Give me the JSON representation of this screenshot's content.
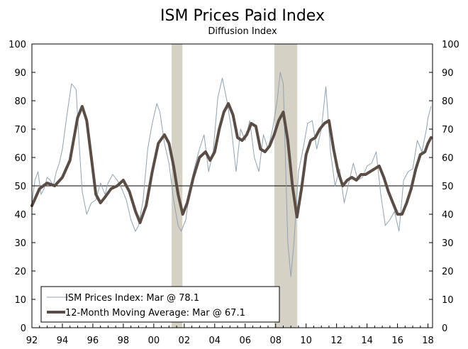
{
  "chart_data": {
    "type": "line",
    "title": "ISM Prices Paid Index",
    "subtitle": "Diffusion Index",
    "xlabel": "",
    "ylabel": "",
    "xlim": [
      1992.0,
      2018.3
    ],
    "ylim": [
      0,
      100
    ],
    "x_ticks": [
      1992,
      1994,
      1996,
      1998,
      2000,
      2002,
      2004,
      2006,
      2008,
      2010,
      2012,
      2014,
      2016,
      2018
    ],
    "x_tick_labels": [
      "92",
      "94",
      "96",
      "98",
      "00",
      "02",
      "04",
      "06",
      "08",
      "10",
      "12",
      "14",
      "16",
      "18"
    ],
    "y_ticks": [
      0,
      10,
      20,
      30,
      40,
      50,
      60,
      70,
      80,
      90,
      100
    ],
    "reference_line": 50,
    "recessions": [
      [
        2001.17,
        2001.88
      ],
      [
        2007.92,
        2009.42
      ]
    ],
    "colors": {
      "index": "#8fa3b3",
      "moving_average": "#5a4d45",
      "recession": "#d5d1c5",
      "reference": "#000000"
    },
    "legend": {
      "position": "bottom-left",
      "entries": [
        "ISM Prices Index: Mar @ 78.1",
        "12-Month Moving Average: Mar @ 67.1"
      ]
    },
    "series": [
      {
        "name": "ISM Prices Index",
        "x": [
          1992.0,
          1992.2,
          1992.4,
          1992.6,
          1992.8,
          1993.0,
          1993.2,
          1993.4,
          1993.6,
          1993.8,
          1994.0,
          1994.3,
          1994.6,
          1994.9,
          1995.1,
          1995.3,
          1995.6,
          1995.9,
          1996.2,
          1996.5,
          1996.8,
          1997.0,
          1997.3,
          1997.6,
          1997.9,
          1998.2,
          1998.5,
          1998.8,
          1999.0,
          1999.3,
          1999.6,
          1999.9,
          2000.2,
          2000.4,
          2000.7,
          2001.0,
          2001.3,
          2001.6,
          2001.8,
          2002.1,
          2002.4,
          2002.7,
          2003.0,
          2003.3,
          2003.6,
          2003.9,
          2004.2,
          2004.5,
          2004.8,
          2005.1,
          2005.4,
          2005.7,
          2006.0,
          2006.3,
          2006.6,
          2006.9,
          2007.2,
          2007.5,
          2007.8,
          2008.1,
          2008.3,
          2008.5,
          2008.8,
          2009.0,
          2009.2,
          2009.5,
          2009.8,
          2010.1,
          2010.4,
          2010.7,
          2011.0,
          2011.3,
          2011.6,
          2011.9,
          2012.2,
          2012.5,
          2012.8,
          2013.1,
          2013.4,
          2013.7,
          2014.0,
          2014.3,
          2014.6,
          2014.9,
          2015.2,
          2015.5,
          2015.8,
          2016.1,
          2016.4,
          2016.7,
          2017.0,
          2017.3,
          2017.6,
          2017.9,
          2018.0,
          2018.2
        ],
        "values": [
          44,
          52,
          55,
          47,
          49,
          53,
          52,
          50,
          55,
          58,
          63,
          75,
          86,
          84,
          65,
          48,
          40,
          44,
          45,
          51,
          47,
          51,
          54,
          52,
          49,
          45,
          38,
          34,
          36,
          45,
          63,
          72,
          79,
          76,
          65,
          58,
          45,
          36,
          34,
          38,
          50,
          57,
          63,
          68,
          55,
          62,
          81,
          88,
          80,
          70,
          55,
          70,
          66,
          73,
          60,
          55,
          68,
          63,
          70,
          80,
          90,
          86,
          30,
          18,
          30,
          55,
          63,
          72,
          73,
          63,
          70,
          85,
          62,
          50,
          56,
          44,
          51,
          58,
          52,
          53,
          57,
          58,
          62,
          47,
          36,
          38,
          41,
          34,
          52,
          55,
          56,
          66,
          62,
          70,
          74,
          78
        ]
      },
      {
        "name": "12-Month Moving Average",
        "x": [
          1992.0,
          1992.5,
          1993.0,
          1993.5,
          1994.0,
          1994.5,
          1995.0,
          1995.3,
          1995.6,
          1995.9,
          1996.2,
          1996.5,
          1996.8,
          1997.2,
          1997.6,
          1998.0,
          1998.4,
          1998.8,
          1999.1,
          1999.5,
          1999.9,
          2000.3,
          2000.7,
          2001.0,
          2001.3,
          2001.6,
          2001.9,
          2002.2,
          2002.6,
          2003.0,
          2003.4,
          2003.7,
          2004.0,
          2004.3,
          2004.6,
          2004.9,
          2005.2,
          2005.5,
          2005.8,
          2006.1,
          2006.4,
          2006.7,
          2007.0,
          2007.3,
          2007.6,
          2007.9,
          2008.2,
          2008.5,
          2008.8,
          2009.1,
          2009.4,
          2009.7,
          2010.0,
          2010.3,
          2010.6,
          2010.9,
          2011.2,
          2011.5,
          2011.8,
          2012.1,
          2012.4,
          2012.7,
          2013.0,
          2013.3,
          2013.6,
          2013.9,
          2014.2,
          2014.5,
          2014.8,
          2015.1,
          2015.4,
          2015.7,
          2016.0,
          2016.3,
          2016.6,
          2016.9,
          2017.2,
          2017.5,
          2017.8,
          2018.0,
          2018.2
        ],
        "values": [
          43,
          49,
          51,
          50,
          53,
          59,
          74,
          78,
          73,
          60,
          47,
          44,
          46,
          49,
          50,
          52,
          48,
          41,
          37,
          43,
          55,
          65,
          68,
          65,
          57,
          47,
          40,
          44,
          53,
          60,
          62,
          59,
          62,
          70,
          76,
          79,
          75,
          67,
          66,
          68,
          72,
          71,
          63,
          62,
          64,
          68,
          73,
          76,
          66,
          50,
          39,
          49,
          61,
          66,
          67,
          70,
          72,
          73,
          63,
          55,
          50,
          52,
          53,
          52,
          54,
          54,
          55,
          56,
          57,
          53,
          48,
          44,
          40,
          40,
          44,
          49,
          56,
          61,
          62,
          65,
          67
        ]
      }
    ]
  }
}
